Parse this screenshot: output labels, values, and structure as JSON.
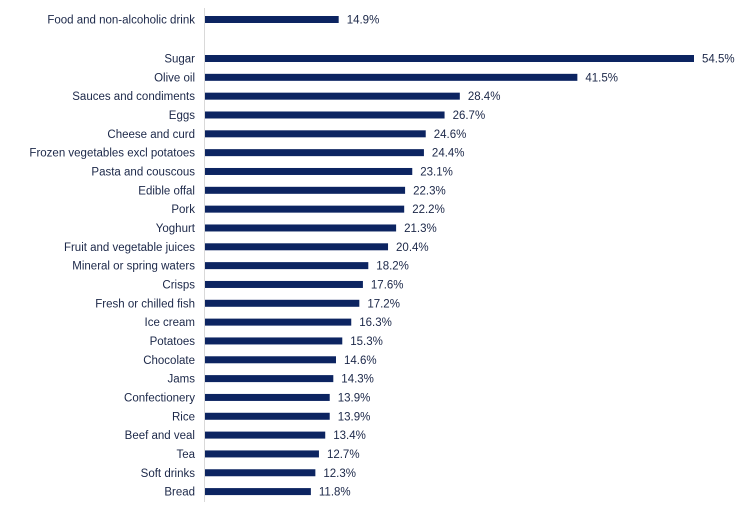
{
  "chart_data": {
    "type": "bar",
    "orientation": "horizontal",
    "categories": [
      "Food and non-alcoholic drink",
      "Sugar",
      "Olive oil",
      "Sauces and condiments",
      "Eggs",
      "Cheese and curd",
      "Frozen vegetables excl potatoes",
      "Pasta and couscous",
      "Edible offal",
      "Pork",
      "Yoghurt",
      "Fruit and vegetable juices",
      "Mineral or spring waters",
      "Crisps",
      "Fresh or chilled fish",
      "Ice cream",
      "Potatoes",
      "Chocolate",
      "Jams",
      "Confectionery",
      "Rice",
      "Beef and veal",
      "Tea",
      "Soft drinks",
      "Bread"
    ],
    "values": [
      14.9,
      54.5,
      41.5,
      28.4,
      26.7,
      24.6,
      24.4,
      23.1,
      22.3,
      22.2,
      21.3,
      20.4,
      18.2,
      17.6,
      17.2,
      16.3,
      15.3,
      14.6,
      14.3,
      13.9,
      13.9,
      13.4,
      12.7,
      12.3,
      11.8
    ],
    "value_labels": [
      "14.9%",
      "54.5%",
      "41.5%",
      "28.4%",
      "26.7%",
      "24.6%",
      "24.4%",
      "23.1%",
      "22.3%",
      "22.2%",
      "21.3%",
      "20.4%",
      "18.2%",
      "17.6%",
      "17.2%",
      "16.3%",
      "15.3%",
      "14.6%",
      "14.3%",
      "13.9%",
      "13.9%",
      "13.4%",
      "12.7%",
      "12.3%",
      "11.8%"
    ],
    "xlim": [
      0,
      55
    ],
    "grid": false,
    "bar_color": "#0c2461",
    "axis_color": "#d9d9d9"
  }
}
